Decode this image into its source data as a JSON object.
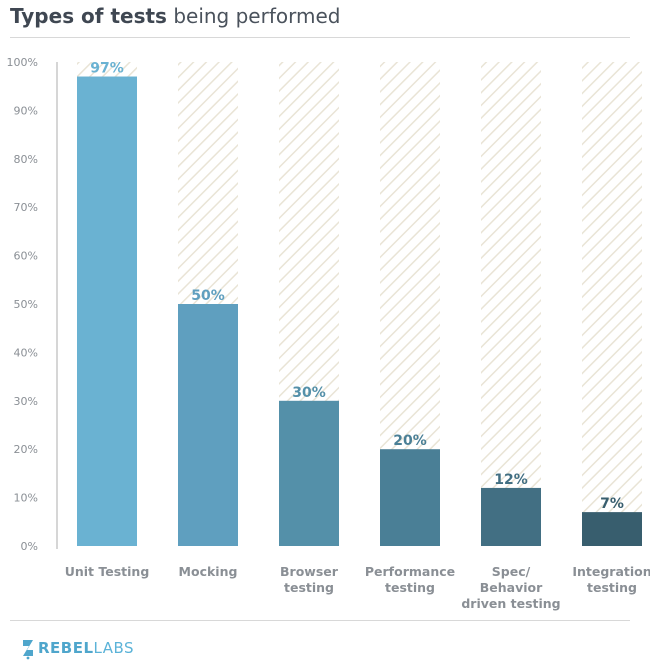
{
  "title": {
    "bold": "Types of tests",
    "light": "being performed"
  },
  "chart_data": {
    "type": "bar",
    "title": "Types of tests being performed",
    "categories": [
      [
        "Unit Testing"
      ],
      [
        "Mocking"
      ],
      [
        "Browser",
        "testing"
      ],
      [
        "Performance",
        "testing"
      ],
      [
        "Spec/",
        "Behavior",
        "driven testing"
      ],
      [
        "Integration",
        "testing"
      ]
    ],
    "values": [
      97,
      50,
      30,
      20,
      12,
      7
    ],
    "value_labels": [
      "97%",
      "50%",
      "30%",
      "20%",
      "12%",
      "7%"
    ],
    "colors": [
      "#6ab2d2",
      "#5f9fbf",
      "#5490a9",
      "#4a7f96",
      "#426f83",
      "#385e6e"
    ],
    "value_label_colors": [
      "#6ab2d2",
      "#5f9fbf",
      "#5490a9",
      "#4a7f96",
      "#426f83",
      "#385e6e"
    ],
    "ylim": [
      0,
      100
    ],
    "yticks": [
      "0%",
      "10%",
      "20%",
      "30%",
      "40%",
      "50%",
      "60%",
      "70%",
      "80%",
      "90%",
      "100%"
    ],
    "background_pattern": "diagonal-hatch",
    "grid": false
  },
  "footer": {
    "logo_bold": "REBEL",
    "logo_light": "LABS"
  }
}
